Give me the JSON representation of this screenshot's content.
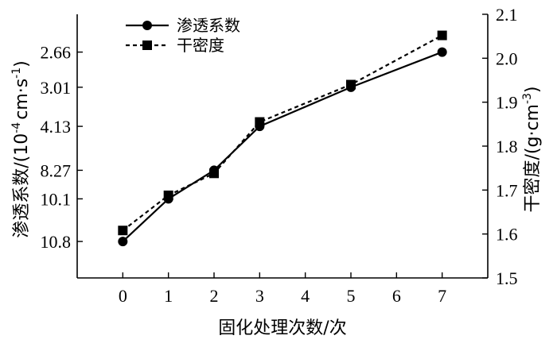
{
  "chart_data": {
    "type": "line",
    "x_label": "固化处理次数/次",
    "x_ticks": [
      0,
      1,
      2,
      3,
      4,
      5,
      6,
      7
    ],
    "x_range": [
      -1,
      8
    ],
    "y_left": {
      "label_main": "渗透系数/(10",
      "label_exp1": "-4",
      "label_mid": "cm·s",
      "label_exp2": "-1",
      "label_end": ")",
      "tick_labels": [
        "10.8",
        "10.1",
        "8.27",
        "4.13",
        "3.01",
        "2.66"
      ]
    },
    "y_right": {
      "label_main": "干密度/(g·cm",
      "label_exp": "-3",
      "label_end": ")",
      "ylim": [
        1.5,
        2.1
      ],
      "ticks": [
        1.5,
        1.6,
        1.7,
        1.8,
        1.9,
        2.0,
        2.1
      ],
      "tick_labels": [
        "1.5",
        "1.6",
        "1.7",
        "1.8",
        "1.9",
        "2.0",
        "2.1"
      ]
    },
    "series": [
      {
        "name": "渗透系数",
        "marker": "circle",
        "line": "solid",
        "x": [
          0,
          1,
          2,
          3,
          5,
          7
        ],
        "y": [
          10.8,
          10.1,
          8.27,
          4.13,
          3.01,
          2.66
        ],
        "plotted_on_right_scale": [
          1.583,
          1.68,
          1.745,
          1.845,
          1.934,
          2.014
        ]
      },
      {
        "name": "干密度",
        "marker": "square",
        "line": "dashed",
        "x": [
          0,
          1,
          2,
          3,
          5,
          7
        ],
        "y": [
          1.608,
          1.688,
          1.738,
          1.855,
          1.94,
          2.052
        ]
      }
    ],
    "legend_position": "top-left"
  }
}
